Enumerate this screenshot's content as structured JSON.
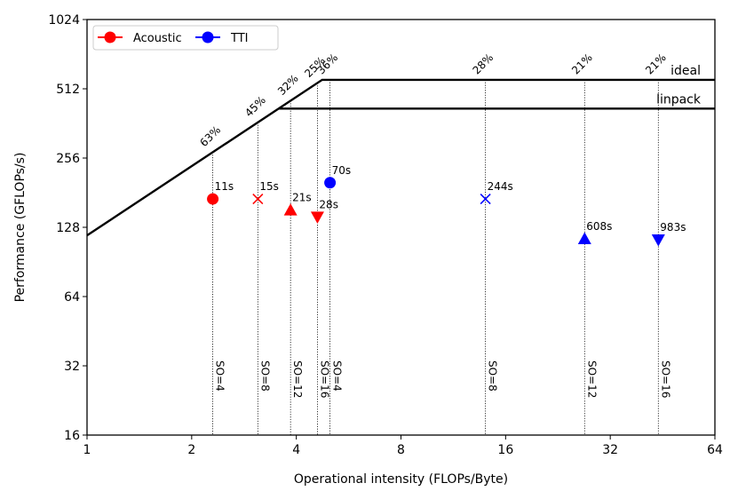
{
  "chart_data": {
    "type": "scatter",
    "subtype": "roofline",
    "title": "",
    "xlabel": "Operational intensity (FLOPs/Byte)",
    "ylabel": "Performance (GFLOPs/s)",
    "xscale": "log2",
    "yscale": "log2",
    "xlim": [
      1,
      64
    ],
    "ylim": [
      16,
      1024
    ],
    "xticks": [
      1,
      2,
      4,
      8,
      16,
      32,
      64
    ],
    "yticks": [
      16,
      32,
      64,
      128,
      256,
      512,
      1024
    ],
    "xtick_labels": [
      "1",
      "2",
      "4",
      "8",
      "16",
      "32",
      "64"
    ],
    "ytick_labels": [
      "16",
      "32",
      "64",
      "128",
      "256",
      "512",
      "1024"
    ],
    "legend": {
      "location": "upper-left",
      "entries": [
        {
          "label": "Acoustic",
          "color": "#ff0000",
          "marker": "circle"
        },
        {
          "label": "TTI",
          "color": "#0000ff",
          "marker": "circle"
        }
      ]
    },
    "rooflines": [
      {
        "name": "ideal",
        "label": "ideal",
        "peak": 560,
        "bandwidth": 118
      },
      {
        "name": "linpack",
        "label": "linpack",
        "peak": 420,
        "bandwidth": 118
      }
    ],
    "points": [
      {
        "series": "Acoustic",
        "marker": "circle",
        "color": "#ff0000",
        "x": 2.3,
        "y": 170,
        "time": "11s",
        "so": "SO=4",
        "pct": "63%"
      },
      {
        "series": "Acoustic",
        "marker": "x",
        "color": "#ff0000",
        "x": 3.1,
        "y": 170,
        "time": "15s",
        "so": "SO=8",
        "pct": "45%"
      },
      {
        "series": "Acoustic",
        "marker": "triangle-up",
        "color": "#ff0000",
        "x": 3.85,
        "y": 152,
        "time": "21s",
        "so": "SO=12",
        "pct": "32%"
      },
      {
        "series": "Acoustic",
        "marker": "triangle-down",
        "color": "#ff0000",
        "x": 4.6,
        "y": 142,
        "time": "28s",
        "so": "SO=16",
        "pct": "25%"
      },
      {
        "series": "TTI",
        "marker": "circle",
        "color": "#0000ff",
        "x": 5.0,
        "y": 200,
        "time": "70s",
        "so": "SO=4",
        "pct": "36%"
      },
      {
        "series": "TTI",
        "marker": "x",
        "color": "#0000ff",
        "x": 14.0,
        "y": 170,
        "time": "244s",
        "so": "SO=8",
        "pct": "28%"
      },
      {
        "series": "TTI",
        "marker": "triangle-up",
        "color": "#0000ff",
        "x": 27.0,
        "y": 114,
        "time": "608s",
        "so": "SO=12",
        "pct": "21%"
      },
      {
        "series": "TTI",
        "marker": "triangle-down",
        "color": "#0000ff",
        "x": 44.0,
        "y": 113,
        "time": "983s",
        "so": "SO=16",
        "pct": "21%"
      }
    ]
  }
}
